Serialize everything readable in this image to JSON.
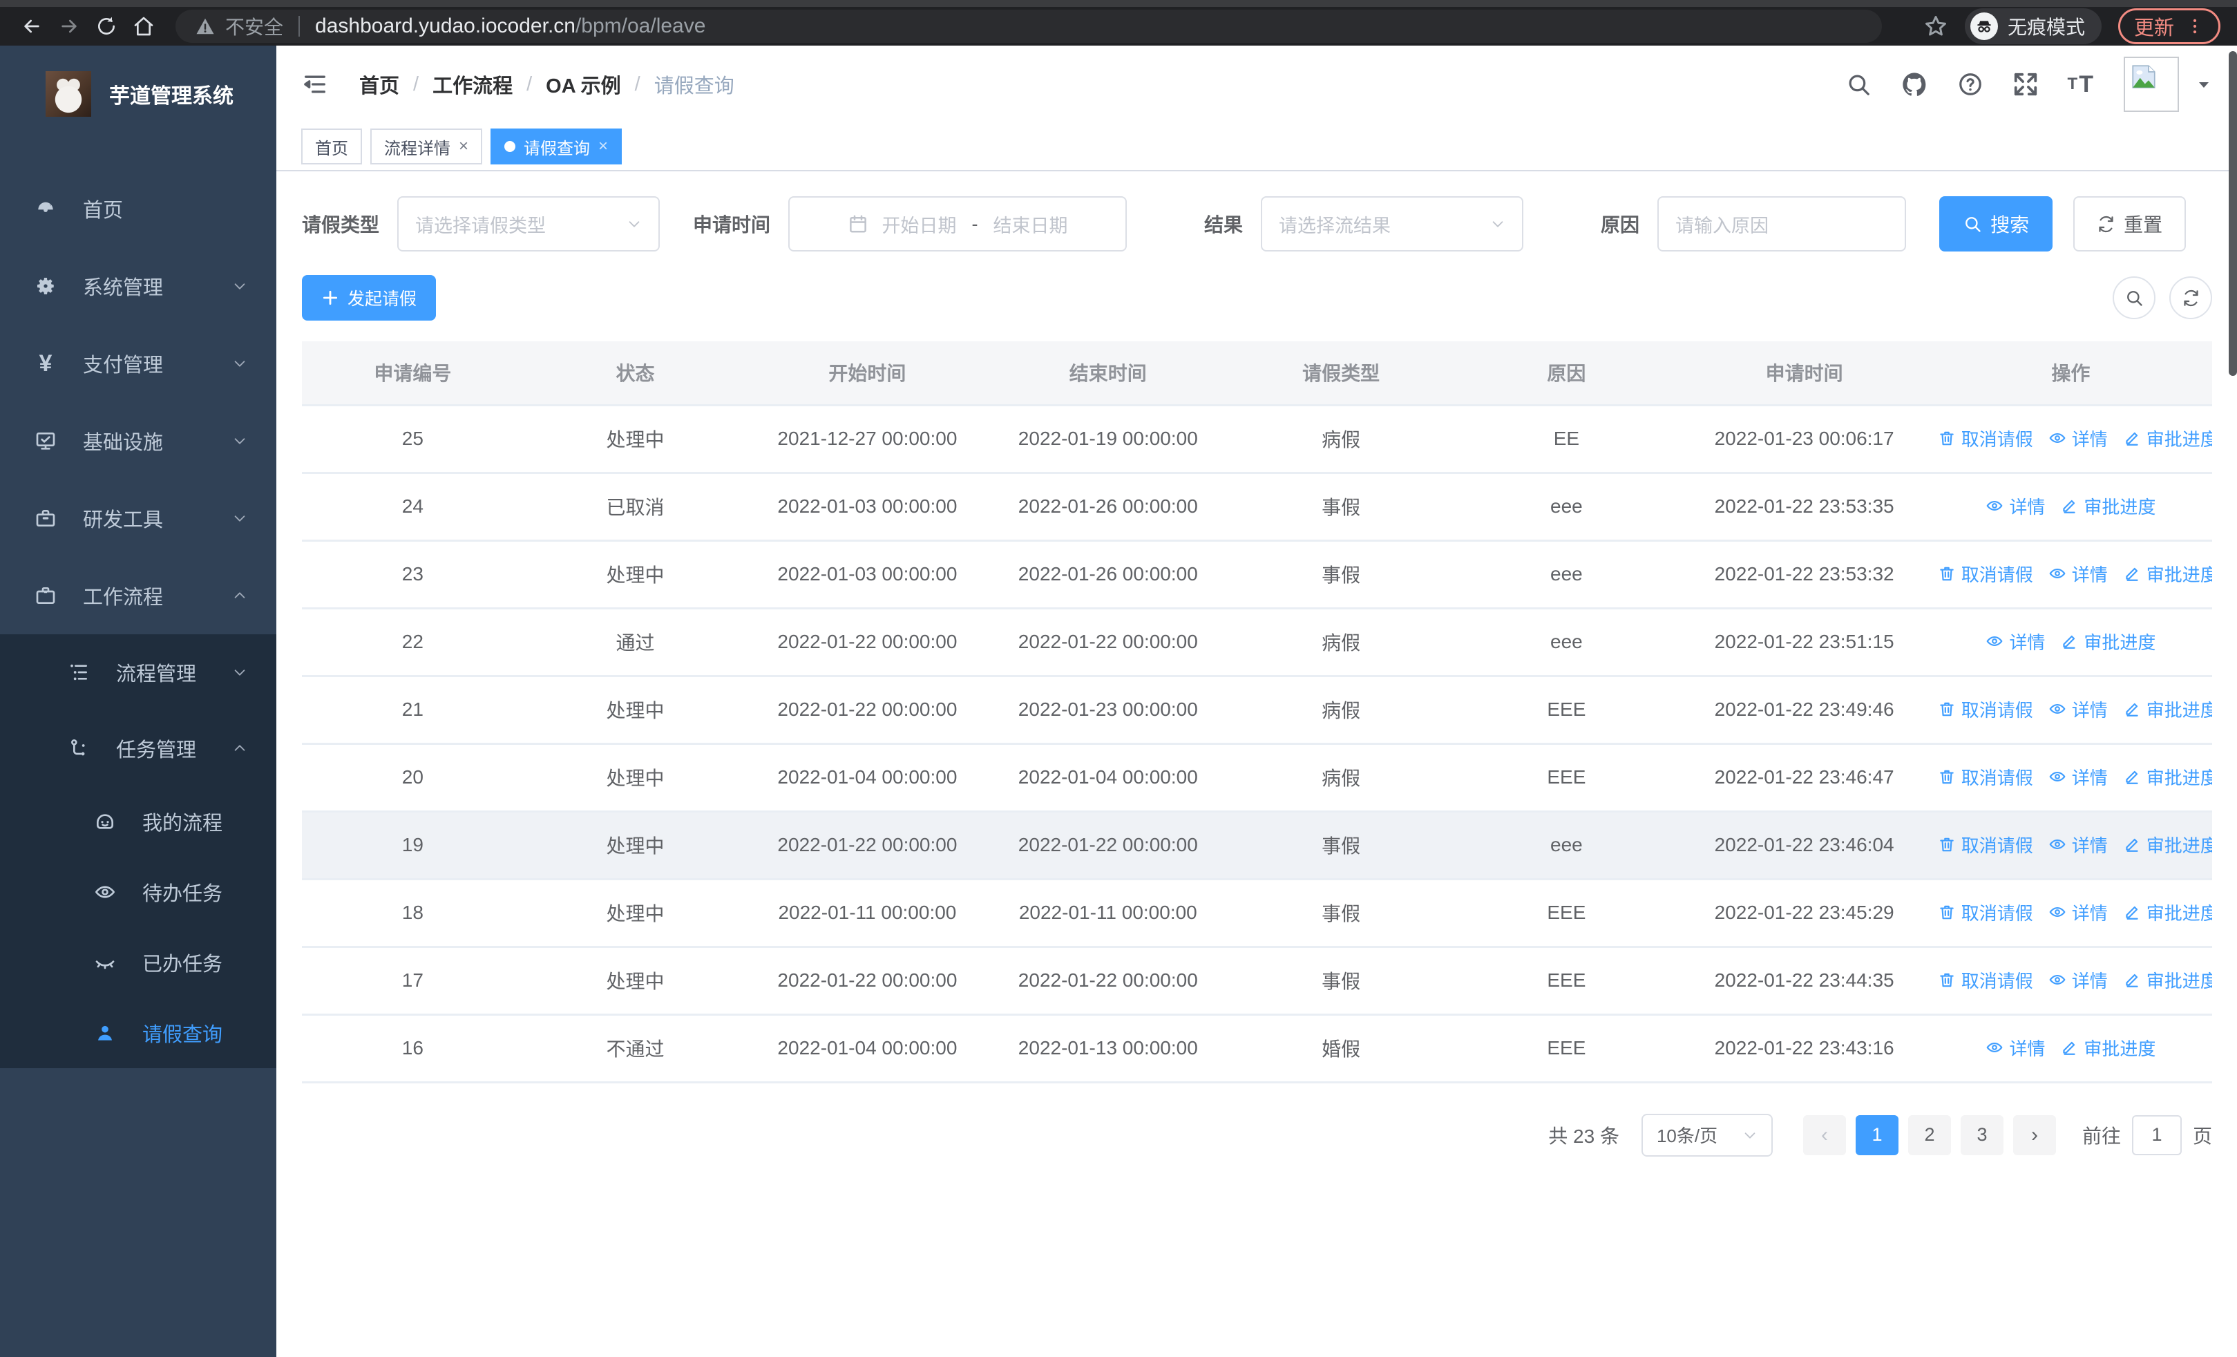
{
  "colors": {
    "accent": "#409eff",
    "sidebar_bg": "#304156",
    "submenu_bg": "#1f2d3d",
    "active_tab_bg": "#409eff",
    "update_red": "#f28b82",
    "table_header_bg": "#f5f6f8"
  },
  "chrome": {
    "security_label": "不安全",
    "url_host": "dashboard.yudao.iocoder.cn",
    "url_path": "/bpm/oa/leave",
    "incognito_label": "无痕模式",
    "update_label": "更新"
  },
  "sidebar": {
    "title": "芋道管理系统",
    "items": [
      {
        "label": "首页",
        "icon": "dashboard-icon",
        "level": 1,
        "chevron": null,
        "sub": false,
        "active": false
      },
      {
        "label": "系统管理",
        "icon": "gear-icon",
        "level": 1,
        "chevron": "down",
        "sub": false,
        "active": false
      },
      {
        "label": "支付管理",
        "icon": "yen-icon",
        "level": 1,
        "chevron": "down",
        "sub": false,
        "active": false
      },
      {
        "label": "基础设施",
        "icon": "monitor-icon",
        "level": 1,
        "chevron": "down",
        "sub": false,
        "active": false
      },
      {
        "label": "研发工具",
        "icon": "toolbox-icon",
        "level": 1,
        "chevron": "down",
        "sub": false,
        "active": false
      },
      {
        "label": "工作流程",
        "icon": "briefcase-icon",
        "level": 1,
        "chevron": "up",
        "sub": false,
        "active": false
      },
      {
        "label": "流程管理",
        "icon": "tree-list-icon",
        "level": 2,
        "chevron": "down",
        "sub": true,
        "active": false
      },
      {
        "label": "任务管理",
        "icon": "flow-icon",
        "level": 2,
        "chevron": "up",
        "sub": true,
        "active": false
      },
      {
        "label": "我的流程",
        "icon": "face-icon",
        "level": 3,
        "chevron": null,
        "sub": true,
        "active": false
      },
      {
        "label": "待办任务",
        "icon": "eye-icon",
        "level": 3,
        "chevron": null,
        "sub": true,
        "active": false
      },
      {
        "label": "已办任务",
        "icon": "eye-closed-icon",
        "level": 3,
        "chevron": null,
        "sub": true,
        "active": false
      },
      {
        "label": "请假查询",
        "icon": "user-icon",
        "level": 3,
        "chevron": null,
        "sub": true,
        "active": true
      }
    ]
  },
  "header": {
    "breadcrumb": [
      "首页",
      "工作流程",
      "OA 示例",
      "请假查询"
    ]
  },
  "tabs": [
    {
      "label": "首页",
      "closable": false,
      "active": false
    },
    {
      "label": "流程详情",
      "closable": true,
      "active": false
    },
    {
      "label": "请假查询",
      "closable": true,
      "active": true
    }
  ],
  "filters": {
    "leave_type": {
      "label": "请假类型",
      "placeholder": "请选择请假类型"
    },
    "apply_time": {
      "label": "申请时间",
      "start_placeholder": "开始日期",
      "separator": "-",
      "end_placeholder": "结束日期"
    },
    "result": {
      "label": "结果",
      "placeholder": "请选择流结果"
    },
    "reason": {
      "label": "原因",
      "placeholder": "请输入原因"
    },
    "search_label": "搜索",
    "reset_label": "重置"
  },
  "toolbar": {
    "create_label": "发起请假"
  },
  "table": {
    "columns": [
      "申请编号",
      "状态",
      "开始时间",
      "结束时间",
      "请假类型",
      "原因",
      "申请时间",
      "操作"
    ],
    "col_widths": [
      "11.6%",
      "11.7%",
      "12.6%",
      "12.6%",
      "11.8%",
      "11.8%",
      "13.1%",
      "14.8%"
    ],
    "action_defs": {
      "cancel": {
        "label": "取消请假",
        "icon": "trash-icon"
      },
      "detail": {
        "label": "详情",
        "icon": "view-icon"
      },
      "progress": {
        "label": "审批进度",
        "icon": "edit-icon"
      }
    },
    "rows": [
      {
        "id": "25",
        "status": "处理中",
        "start": "2021-12-27 00:00:00",
        "end": "2022-01-19 00:00:00",
        "type": "病假",
        "reason": "EE",
        "apply_time": "2022-01-23 00:06:17",
        "actions": [
          "cancel",
          "detail",
          "progress"
        ],
        "hover": false
      },
      {
        "id": "24",
        "status": "已取消",
        "start": "2022-01-03 00:00:00",
        "end": "2022-01-26 00:00:00",
        "type": "事假",
        "reason": "eee",
        "apply_time": "2022-01-22 23:53:35",
        "actions": [
          "detail",
          "progress"
        ],
        "hover": false
      },
      {
        "id": "23",
        "status": "处理中",
        "start": "2022-01-03 00:00:00",
        "end": "2022-01-26 00:00:00",
        "type": "事假",
        "reason": "eee",
        "apply_time": "2022-01-22 23:53:32",
        "actions": [
          "cancel",
          "detail",
          "progress"
        ],
        "hover": false
      },
      {
        "id": "22",
        "status": "通过",
        "start": "2022-01-22 00:00:00",
        "end": "2022-01-22 00:00:00",
        "type": "病假",
        "reason": "eee",
        "apply_time": "2022-01-22 23:51:15",
        "actions": [
          "detail",
          "progress"
        ],
        "hover": false
      },
      {
        "id": "21",
        "status": "处理中",
        "start": "2022-01-22 00:00:00",
        "end": "2022-01-23 00:00:00",
        "type": "病假",
        "reason": "EEE",
        "apply_time": "2022-01-22 23:49:46",
        "actions": [
          "cancel",
          "detail",
          "progress"
        ],
        "hover": false
      },
      {
        "id": "20",
        "status": "处理中",
        "start": "2022-01-04 00:00:00",
        "end": "2022-01-04 00:00:00",
        "type": "病假",
        "reason": "EEE",
        "apply_time": "2022-01-22 23:46:47",
        "actions": [
          "cancel",
          "detail",
          "progress"
        ],
        "hover": false
      },
      {
        "id": "19",
        "status": "处理中",
        "start": "2022-01-22 00:00:00",
        "end": "2022-01-22 00:00:00",
        "type": "事假",
        "reason": "eee",
        "apply_time": "2022-01-22 23:46:04",
        "actions": [
          "cancel",
          "detail",
          "progress"
        ],
        "hover": true
      },
      {
        "id": "18",
        "status": "处理中",
        "start": "2022-01-11 00:00:00",
        "end": "2022-01-11 00:00:00",
        "type": "事假",
        "reason": "EEE",
        "apply_time": "2022-01-22 23:45:29",
        "actions": [
          "cancel",
          "detail",
          "progress"
        ],
        "hover": false
      },
      {
        "id": "17",
        "status": "处理中",
        "start": "2022-01-22 00:00:00",
        "end": "2022-01-22 00:00:00",
        "type": "事假",
        "reason": "EEE",
        "apply_time": "2022-01-22 23:44:35",
        "actions": [
          "cancel",
          "detail",
          "progress"
        ],
        "hover": false
      },
      {
        "id": "16",
        "status": "不通过",
        "start": "2022-01-04 00:00:00",
        "end": "2022-01-13 00:00:00",
        "type": "婚假",
        "reason": "EEE",
        "apply_time": "2022-01-22 23:43:16",
        "actions": [
          "detail",
          "progress"
        ],
        "hover": false
      }
    ]
  },
  "pagination": {
    "total_label": "共 23 条",
    "page_size_label": "10条/页",
    "pages": [
      "1",
      "2",
      "3"
    ],
    "active_page": "1",
    "prev_enabled": false,
    "next_enabled": true,
    "goto_label": "前往",
    "goto_value": "1",
    "goto_suffix": "页"
  }
}
